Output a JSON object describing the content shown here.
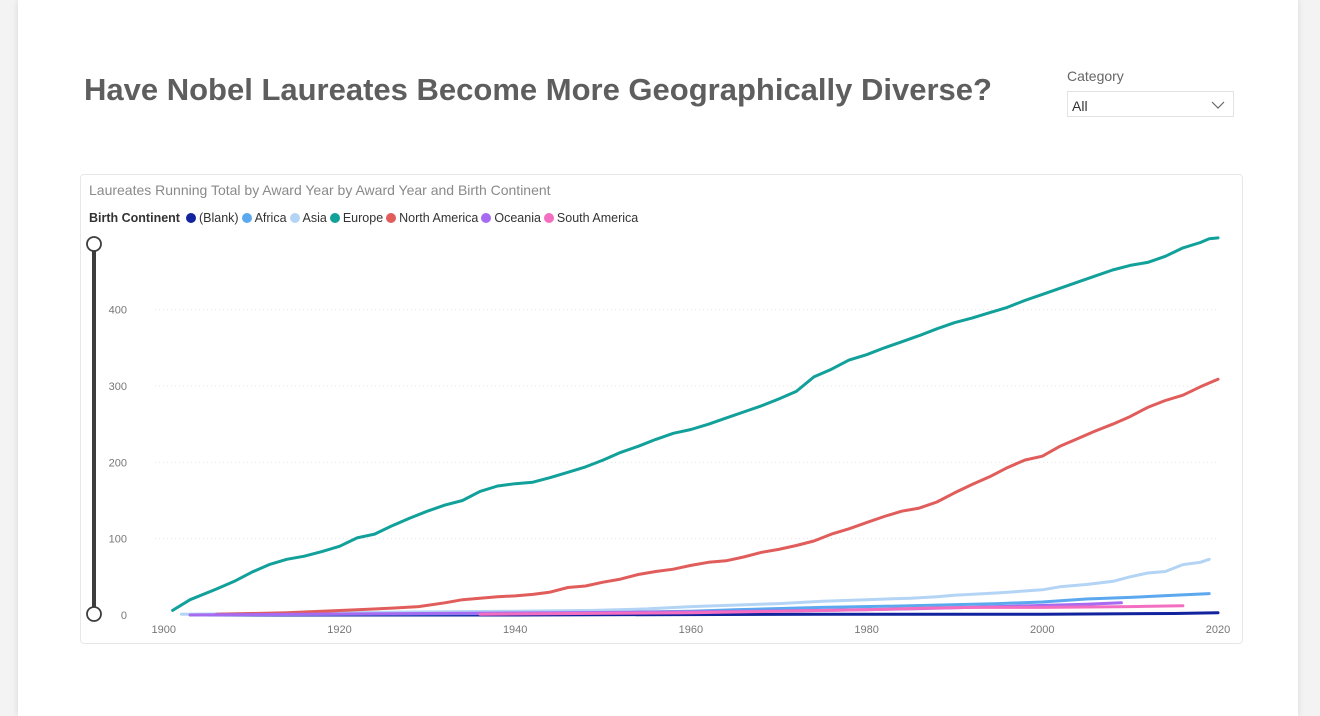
{
  "page": {
    "title": "Have Nobel Laureates Become More Geographically Diverse?"
  },
  "slicer": {
    "label": "Category",
    "value": "All"
  },
  "chart_data": {
    "type": "line",
    "title": "Laureates Running Total by Award Year by Award Year and Birth Continent",
    "legend_title": "Birth Continent",
    "legend_position": "top-left",
    "grid": true,
    "xlabel": "",
    "ylabel": "",
    "xlim": [
      1899,
      2020
    ],
    "ylim": [
      0,
      490
    ],
    "x_ticks": [
      1900,
      1920,
      1940,
      1960,
      1980,
      2000,
      2020
    ],
    "y_ticks": [
      0,
      100,
      200,
      300,
      400
    ],
    "series": [
      {
        "name": "(Blank)",
        "color": "#12239e",
        "points": [
          [
            1905,
            0
          ],
          [
            1940,
            0
          ],
          [
            1975,
            1
          ],
          [
            2000,
            1
          ],
          [
            2015,
            2
          ],
          [
            2020,
            3
          ]
        ]
      },
      {
        "name": "Africa",
        "color": "#5ba8ee",
        "points": [
          [
            1903,
            0
          ],
          [
            1920,
            1
          ],
          [
            1940,
            2
          ],
          [
            1955,
            4
          ],
          [
            1960,
            5
          ],
          [
            1965,
            7
          ],
          [
            1975,
            10
          ],
          [
            1985,
            12
          ],
          [
            1995,
            15
          ],
          [
            2000,
            17
          ],
          [
            2005,
            21
          ],
          [
            2010,
            23
          ],
          [
            2015,
            26
          ],
          [
            2019,
            28
          ]
        ]
      },
      {
        "name": "Asia",
        "color": "#b3d4f5",
        "points": [
          [
            1902,
            1
          ],
          [
            1913,
            2
          ],
          [
            1920,
            3
          ],
          [
            1930,
            4
          ],
          [
            1940,
            5
          ],
          [
            1949,
            6
          ],
          [
            1955,
            8
          ],
          [
            1960,
            11
          ],
          [
            1965,
            13
          ],
          [
            1970,
            15
          ],
          [
            1975,
            18
          ],
          [
            1980,
            20
          ],
          [
            1985,
            22
          ],
          [
            1988,
            24
          ],
          [
            1990,
            26
          ],
          [
            1995,
            29
          ],
          [
            2000,
            33
          ],
          [
            2002,
            37
          ],
          [
            2005,
            40
          ],
          [
            2008,
            44
          ],
          [
            2010,
            50
          ],
          [
            2012,
            55
          ],
          [
            2014,
            57
          ],
          [
            2016,
            66
          ],
          [
            2018,
            69
          ],
          [
            2019,
            73
          ]
        ]
      },
      {
        "name": "Europe",
        "color": "#11a09a",
        "points": [
          [
            1901,
            6
          ],
          [
            1903,
            20
          ],
          [
            1906,
            34
          ],
          [
            1908,
            44
          ],
          [
            1910,
            56
          ],
          [
            1912,
            66
          ],
          [
            1914,
            73
          ],
          [
            1916,
            77
          ],
          [
            1918,
            83
          ],
          [
            1920,
            90
          ],
          [
            1922,
            101
          ],
          [
            1924,
            106
          ],
          [
            1926,
            117
          ],
          [
            1928,
            127
          ],
          [
            1930,
            136
          ],
          [
            1932,
            144
          ],
          [
            1934,
            150
          ],
          [
            1936,
            162
          ],
          [
            1938,
            169
          ],
          [
            1940,
            172
          ],
          [
            1942,
            174
          ],
          [
            1944,
            180
          ],
          [
            1946,
            187
          ],
          [
            1948,
            194
          ],
          [
            1950,
            203
          ],
          [
            1952,
            213
          ],
          [
            1954,
            221
          ],
          [
            1956,
            230
          ],
          [
            1958,
            238
          ],
          [
            1960,
            243
          ],
          [
            1962,
            250
          ],
          [
            1964,
            258
          ],
          [
            1966,
            266
          ],
          [
            1968,
            274
          ],
          [
            1970,
            283
          ],
          [
            1972,
            293
          ],
          [
            1974,
            312
          ],
          [
            1976,
            322
          ],
          [
            1978,
            334
          ],
          [
            1980,
            341
          ],
          [
            1982,
            350
          ],
          [
            1984,
            358
          ],
          [
            1986,
            366
          ],
          [
            1988,
            375
          ],
          [
            1990,
            383
          ],
          [
            1992,
            389
          ],
          [
            1994,
            396
          ],
          [
            1996,
            403
          ],
          [
            1998,
            412
          ],
          [
            2000,
            420
          ],
          [
            2002,
            428
          ],
          [
            2004,
            436
          ],
          [
            2006,
            444
          ],
          [
            2008,
            452
          ],
          [
            2010,
            458
          ],
          [
            2012,
            462
          ],
          [
            2014,
            470
          ],
          [
            2016,
            481
          ],
          [
            2018,
            488
          ],
          [
            2019,
            493
          ],
          [
            2020,
            494
          ]
        ]
      },
      {
        "name": "North America",
        "color": "#e05d5b",
        "points": [
          [
            1906,
            1
          ],
          [
            1910,
            2
          ],
          [
            1914,
            3
          ],
          [
            1918,
            5
          ],
          [
            1922,
            7
          ],
          [
            1926,
            9
          ],
          [
            1929,
            11
          ],
          [
            1932,
            16
          ],
          [
            1934,
            20
          ],
          [
            1936,
            22
          ],
          [
            1938,
            24
          ],
          [
            1940,
            25
          ],
          [
            1942,
            27
          ],
          [
            1944,
            30
          ],
          [
            1946,
            36
          ],
          [
            1948,
            38
          ],
          [
            1950,
            43
          ],
          [
            1952,
            47
          ],
          [
            1954,
            53
          ],
          [
            1956,
            57
          ],
          [
            1958,
            60
          ],
          [
            1960,
            65
          ],
          [
            1962,
            69
          ],
          [
            1964,
            71
          ],
          [
            1966,
            76
          ],
          [
            1968,
            82
          ],
          [
            1970,
            86
          ],
          [
            1972,
            91
          ],
          [
            1974,
            97
          ],
          [
            1976,
            106
          ],
          [
            1978,
            113
          ],
          [
            1980,
            121
          ],
          [
            1982,
            129
          ],
          [
            1984,
            136
          ],
          [
            1986,
            140
          ],
          [
            1988,
            148
          ],
          [
            1990,
            160
          ],
          [
            1992,
            171
          ],
          [
            1994,
            181
          ],
          [
            1996,
            193
          ],
          [
            1998,
            203
          ],
          [
            2000,
            208
          ],
          [
            2002,
            221
          ],
          [
            2004,
            231
          ],
          [
            2006,
            241
          ],
          [
            2008,
            250
          ],
          [
            2010,
            260
          ],
          [
            2012,
            272
          ],
          [
            2014,
            281
          ],
          [
            2016,
            288
          ],
          [
            2018,
            299
          ],
          [
            2020,
            309
          ]
        ]
      },
      {
        "name": "Oceania",
        "color": "#a66bf0",
        "points": [
          [
            1903,
            0
          ],
          [
            1915,
            1
          ],
          [
            1930,
            2
          ],
          [
            1945,
            3
          ],
          [
            1960,
            4
          ],
          [
            1975,
            6
          ],
          [
            1985,
            8
          ],
          [
            1995,
            11
          ],
          [
            2005,
            14
          ],
          [
            2009,
            16
          ]
        ]
      },
      {
        "name": "South America",
        "color": "#f36ec1",
        "points": [
          [
            1936,
            1
          ],
          [
            1947,
            2
          ],
          [
            1960,
            3
          ],
          [
            1970,
            5
          ],
          [
            1980,
            7
          ],
          [
            1987,
            9
          ],
          [
            1992,
            10
          ],
          [
            2000,
            10
          ],
          [
            2010,
            11
          ],
          [
            2016,
            12
          ]
        ]
      }
    ]
  }
}
